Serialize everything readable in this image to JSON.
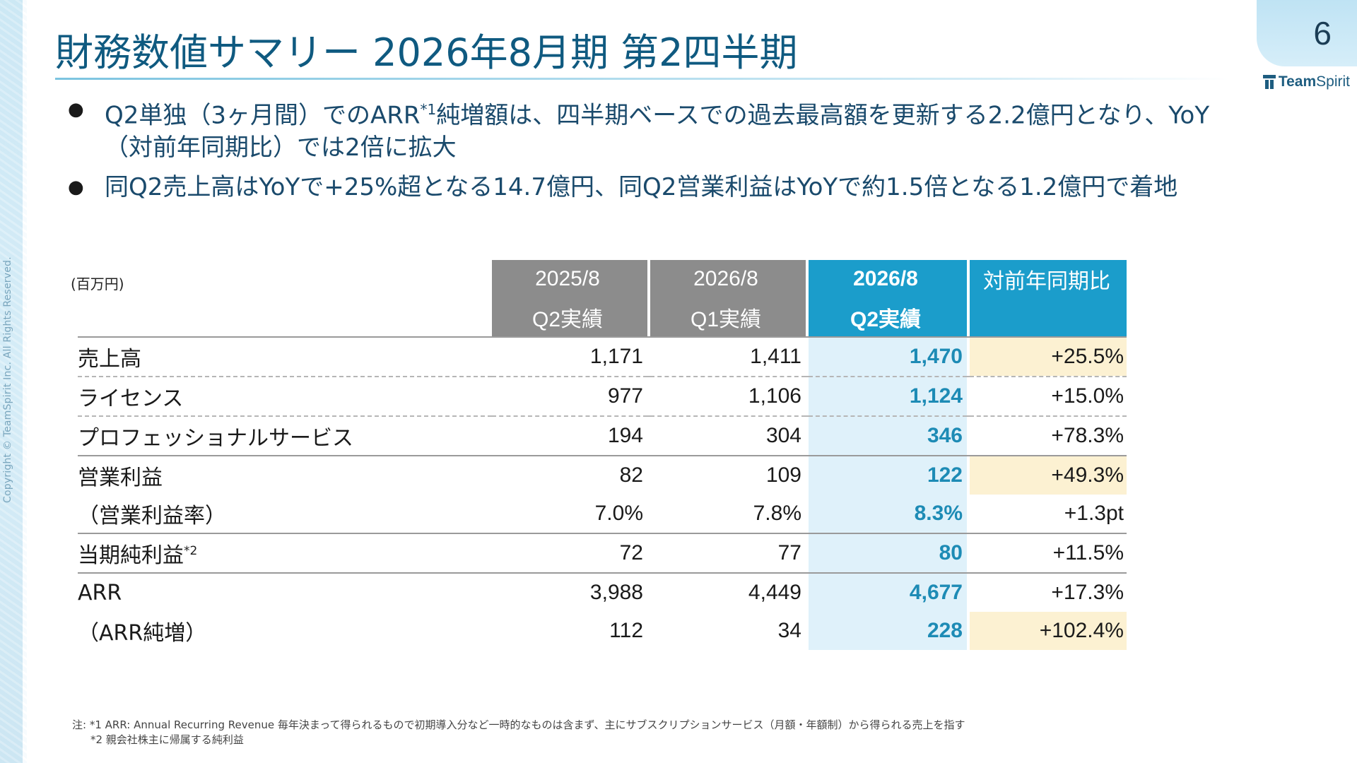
{
  "page": {
    "title": "財務数値サマリー 2026年8月期 第2四半期",
    "page_number": "6",
    "logo": {
      "part1": "Team",
      "part2": "Spirit"
    },
    "copyright": "Copyright © TeamSpirit Inc. All Rights Reserved."
  },
  "bullets": [
    {
      "pre": "Q2単独（3ヶ月間）でのARR",
      "sup": "*1",
      "post": "純増額は、四半期ベースでの過去最高額を更新する2.2億円となり、YoY（対前年同期比）では2倍に拡大"
    },
    {
      "pre": "同Q2売上高はYoYで+25%超となる14.7億円、同Q2営業利益はYoYで約1.5倍となる1.2億円で着地",
      "sup": "",
      "post": ""
    }
  ],
  "table": {
    "unit": "(百万円)",
    "headers": [
      {
        "top": "2025/8",
        "bottom": "Q2実績"
      },
      {
        "top": "2026/8",
        "bottom": "Q1実績"
      },
      {
        "top": "2026/8",
        "bottom": "Q2実績"
      },
      {
        "top": "対前年同期比",
        "bottom": ""
      }
    ],
    "rows": [
      {
        "label": "売上高",
        "sup": "",
        "c1": "1,171",
        "c2": "1,411",
        "c3": "1,470",
        "yoy": "+25.5%",
        "yoy_highlight": true
      },
      {
        "label": "ライセンス",
        "sup": "",
        "c1": "977",
        "c2": "1,106",
        "c3": "1,124",
        "yoy": "+15.0%",
        "yoy_highlight": false
      },
      {
        "label": "プロフェッショナルサービス",
        "sup": "",
        "c1": "194",
        "c2": "304",
        "c3": "346",
        "yoy": "+78.3%",
        "yoy_highlight": false
      },
      {
        "label": "営業利益",
        "sup": "",
        "c1": "82",
        "c2": "109",
        "c3": "122",
        "yoy": "+49.3%",
        "yoy_highlight": true
      },
      {
        "label": "（営業利益率）",
        "sup": "",
        "c1": "7.0%",
        "c2": "7.8%",
        "c3": "8.3%",
        "yoy": "+1.3pt",
        "yoy_highlight": false
      },
      {
        "label": "当期純利益",
        "sup": "*2",
        "c1": "72",
        "c2": "77",
        "c3": "80",
        "yoy": "+11.5%",
        "yoy_highlight": false
      },
      {
        "label": "ARR",
        "sup": "",
        "c1": "3,988",
        "c2": "4,449",
        "c3": "4,677",
        "yoy": "+17.3%",
        "yoy_highlight": false
      },
      {
        "label": "（ARR純増）",
        "sup": "",
        "c1": "112",
        "c2": "34",
        "c3": "228",
        "yoy": "+102.4%",
        "yoy_highlight": true
      }
    ]
  },
  "notes": [
    "注: *1 ARR: Annual Recurring Revenue  毎年決まって得られるもので初期導入分など一時的なものは含まず、主にサブスクリプションサービス（月額・年額制）から得られる売上を指す",
    "*2 親会社株主に帰属する純利益"
  ],
  "colors": {
    "title": "#0f5a80",
    "header_gray": "#8c8c8c",
    "header_blue": "#1b9dcb",
    "current_col_bg": "#dff1fa",
    "current_col_text": "#1d8bb5",
    "highlight": "#fcf1d2"
  }
}
